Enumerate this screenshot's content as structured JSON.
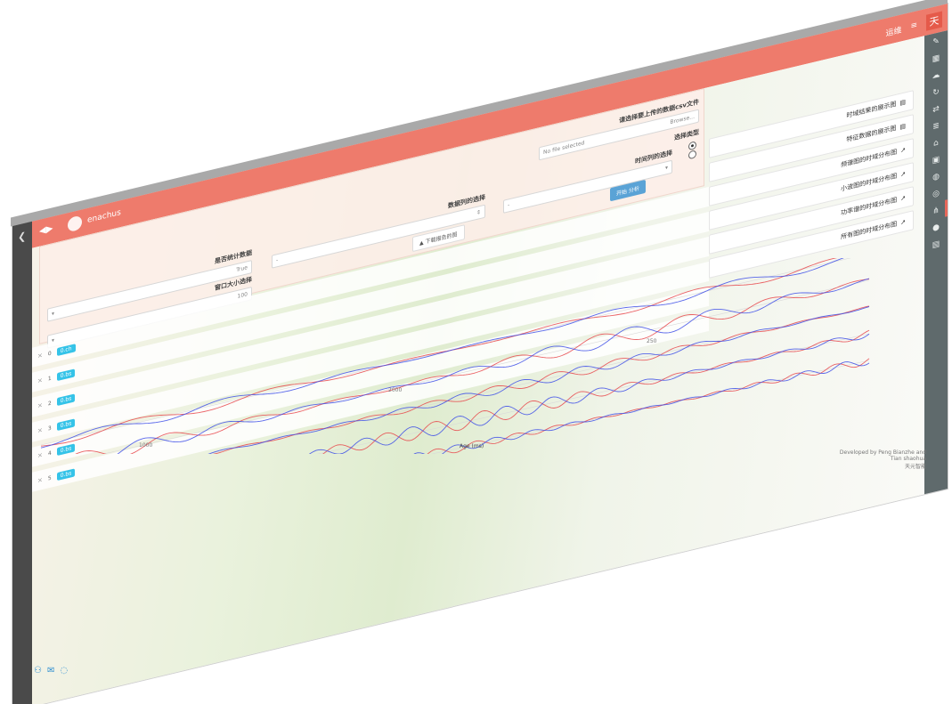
{
  "header": {
    "brand": "enachus",
    "collapse_icon": "hamburger-icon",
    "user": "运维",
    "menu_icon": "≡",
    "tian": "天"
  },
  "panel": {
    "upload_label": "请选择要上传的数据csv文件",
    "browse_label": "Browse...",
    "file_placeholder": "No file selected",
    "select_type_label": "选择类型",
    "col1_label": "时间列的选择",
    "col1_value": "-",
    "col2_label": "数据列的选择",
    "col2_value": "-",
    "apply_label": "开始 分析",
    "download_label": "下载报告的图",
    "choose_label": "是否统计数据",
    "choose_value": "True",
    "window_label": "窗口大小选择",
    "window_value": "100"
  },
  "chart_types": [
    "时域结果的展示图",
    "特征数据的展示图",
    "频谱图的时域分布图",
    "小波图的时域分布图",
    "功率谱的时域分布图",
    "所有图的时域分布图"
  ],
  "series_list": [
    {
      "tag": "0.ch",
      "num": "0"
    },
    {
      "tag": "0.bs",
      "num": "1"
    },
    {
      "tag": "0.bs",
      "num": "2"
    },
    {
      "tag": "0.bs",
      "num": "3"
    },
    {
      "tag": "0.bs",
      "num": "4"
    },
    {
      "tag": "0.bs",
      "num": "5"
    }
  ],
  "footer": {
    "credit": "Developed by Peng Bianzhe and Tian shaohua",
    "sub": "天元智能"
  },
  "chart_data": {
    "type": "line",
    "series": [
      {
        "color": "#e8474b"
      },
      {
        "color": "#3d4ee8"
      }
    ],
    "xlabel": "Age (ms)",
    "x_ticks": [
      "1000",
      "2000",
      "250"
    ]
  }
}
